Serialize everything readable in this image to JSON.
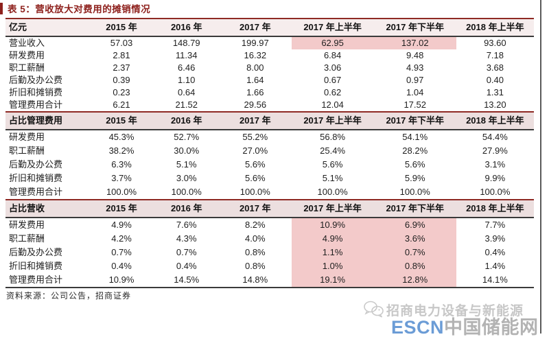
{
  "title": "表 5：营收放大对费用的摊销情况",
  "colors": {
    "accent_dark_red": "#8e211d",
    "header_border_red": "#8e2a24",
    "header_border_dark": "#3a3a3a",
    "section_header_bg": "#ecdfdf",
    "first_header_bg": "#f6eded",
    "highlight_pink": "#f3caca",
    "escn_blue": "#6b9cd6",
    "watermark_gray": "#c7c7c7"
  },
  "table": {
    "columns": [
      "2015 年",
      "2016 年",
      "2017 年",
      "2017 年上半年",
      "2017 年下半年",
      "2018 年上半年"
    ],
    "sections": [
      {
        "label": "亿元",
        "rows": [
          {
            "label": "营业收入",
            "values": [
              "57.03",
              "148.79",
              "199.97",
              "62.95",
              "137.02",
              "93.60"
            ],
            "highlight": [
              3,
              4
            ]
          },
          {
            "label": "研发费用",
            "values": [
              "2.81",
              "11.34",
              "16.32",
              "6.84",
              "9.48",
              "7.18"
            ]
          },
          {
            "label": "职工薪酬",
            "values": [
              "2.37",
              "6.46",
              "8.00",
              "3.06",
              "4.93",
              "3.68"
            ]
          },
          {
            "label": "后勤及办公费",
            "values": [
              "0.39",
              "1.10",
              "1.64",
              "0.67",
              "0.97",
              "0.40"
            ]
          },
          {
            "label": "折旧和摊销费",
            "values": [
              "0.23",
              "0.64",
              "1.66",
              "0.62",
              "1.04",
              "1.31"
            ]
          },
          {
            "label": "管理费用合计",
            "values": [
              "6.21",
              "21.52",
              "29.56",
              "12.04",
              "17.52",
              "13.20"
            ]
          }
        ]
      },
      {
        "label": "占比管理费用",
        "rows": [
          {
            "label": "研发费用",
            "values": [
              "45.3%",
              "52.7%",
              "55.2%",
              "56.8%",
              "54.1%",
              "54.4%"
            ]
          },
          {
            "label": "职工薪酬",
            "values": [
              "38.2%",
              "30.0%",
              "27.0%",
              "25.4%",
              "28.2%",
              "27.9%"
            ]
          },
          {
            "label": "后勤及办公费",
            "values": [
              "6.3%",
              "5.1%",
              "5.6%",
              "5.6%",
              "5.6%",
              "3.1%"
            ]
          },
          {
            "label": "折旧和摊销费",
            "values": [
              "3.7%",
              "3.0%",
              "5.6%",
              "5.1%",
              "5.9%",
              "9.9%"
            ]
          },
          {
            "label": "管理费用合计",
            "values": [
              "100.0%",
              "100.0%",
              "100.0%",
              "100.0%",
              "100.0%",
              "100.0%"
            ]
          }
        ]
      },
      {
        "label": "占比营收",
        "rows": [
          {
            "label": "研发费用",
            "values": [
              "4.9%",
              "7.6%",
              "8.2%",
              "10.9%",
              "6.9%",
              "7.7%"
            ],
            "highlight": [
              3,
              4
            ]
          },
          {
            "label": "职工薪酬",
            "values": [
              "4.2%",
              "4.3%",
              "4.0%",
              "4.9%",
              "3.6%",
              "3.9%"
            ],
            "highlight": [
              3,
              4
            ]
          },
          {
            "label": "后勤及办公费",
            "values": [
              "0.7%",
              "0.7%",
              "0.8%",
              "1.1%",
              "0.7%",
              "0.4%"
            ],
            "highlight": [
              3,
              4
            ]
          },
          {
            "label": "折旧和摊销费",
            "values": [
              "0.4%",
              "0.4%",
              "0.8%",
              "1.0%",
              "0.8%",
              "1.4%"
            ],
            "highlight": [
              3,
              4
            ]
          },
          {
            "label": "管理费用合计",
            "values": [
              "10.9%",
              "14.5%",
              "14.8%",
              "19.1%",
              "12.8%",
              "14.1%"
            ],
            "highlight": [
              3,
              4
            ]
          }
        ]
      }
    ]
  },
  "footer": {
    "source": "资料来源：公司公告，招商证券"
  },
  "watermark": {
    "icon": "wechat-icon",
    "line1": "招商电力设备与新能源",
    "line2_prefix": "ESCN",
    "line2_suffix": "中国储能网"
  }
}
